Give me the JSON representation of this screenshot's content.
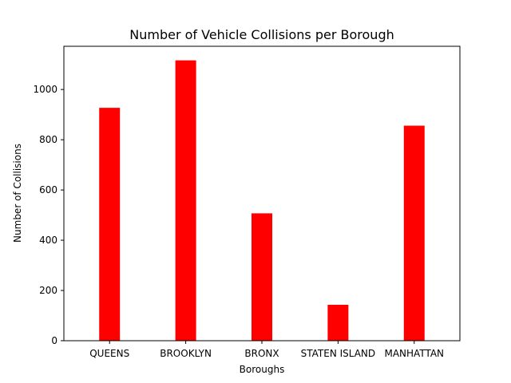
{
  "chart_data": {
    "type": "bar",
    "title": "Number of Vehicle Collisions per Borough",
    "xlabel": "Boroughs",
    "ylabel": "Number of Collisions",
    "categories": [
      "QUEENS",
      "BROOKLYN",
      "BRONX",
      "STATEN ISLAND",
      "MANHATTAN"
    ],
    "values": [
      927,
      1116,
      507,
      143,
      856
    ],
    "ylim": [
      0,
      1172
    ],
    "yticks": [
      0,
      200,
      400,
      600,
      800,
      1000
    ],
    "bar_color": "#ff0000",
    "grid": false,
    "legend": "none"
  }
}
